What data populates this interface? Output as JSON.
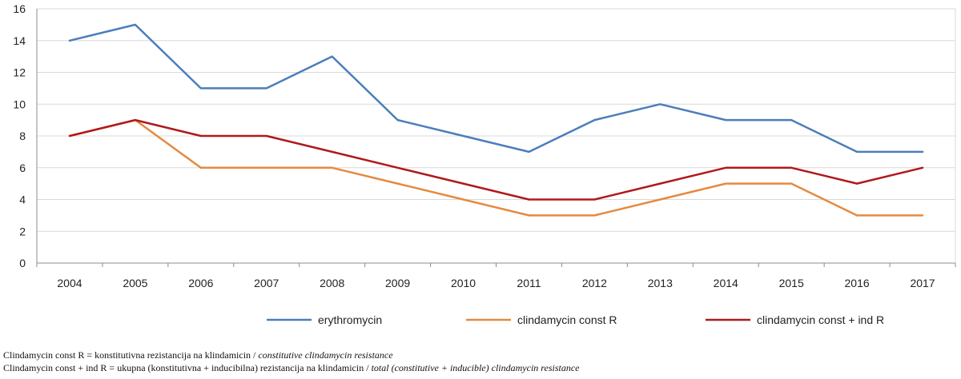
{
  "chart_data": {
    "type": "line",
    "categories": [
      "2004",
      "2005",
      "2006",
      "2007",
      "2008",
      "2009",
      "2010",
      "2011",
      "2012",
      "2013",
      "2014",
      "2015",
      "2016",
      "2017"
    ],
    "ylim": [
      0,
      16
    ],
    "yticks": [
      0,
      2,
      4,
      6,
      8,
      10,
      12,
      14,
      16
    ],
    "ytick_labels": [
      "0",
      "2",
      "4",
      "6",
      "8",
      "10",
      "12",
      "14",
      "16"
    ],
    "grid": "horizontal",
    "legend_position": "bottom",
    "series": [
      {
        "name": "erythromycin",
        "color": "#4a7ebb",
        "values": [
          14,
          15,
          11,
          11,
          13,
          9,
          8,
          7,
          9,
          10,
          9,
          9,
          7,
          7
        ]
      },
      {
        "name": "clindamycin const R",
        "color": "#e58a3f",
        "values": [
          8,
          9,
          6,
          6,
          6,
          5,
          4,
          3,
          3,
          4,
          5,
          5,
          3,
          3
        ]
      },
      {
        "name": "clindamycin const + ind R",
        "color": "#b0191b",
        "values": [
          8,
          9,
          8,
          8,
          7,
          6,
          5,
          4,
          4,
          5,
          6,
          6,
          5,
          6
        ]
      }
    ]
  },
  "footnotes": [
    {
      "text": "Clindamycin const R = konstitutivna rezistancija na klindamicin / ",
      "translation": "constitutive clindamycin resistance"
    },
    {
      "text": "Clindamycin const + ind R = ukupna (konstitutivna + inducibilna) rezistancija na klindamicin / ",
      "translation": "total (constitutive + inducible) clindamycin resistance"
    }
  ]
}
